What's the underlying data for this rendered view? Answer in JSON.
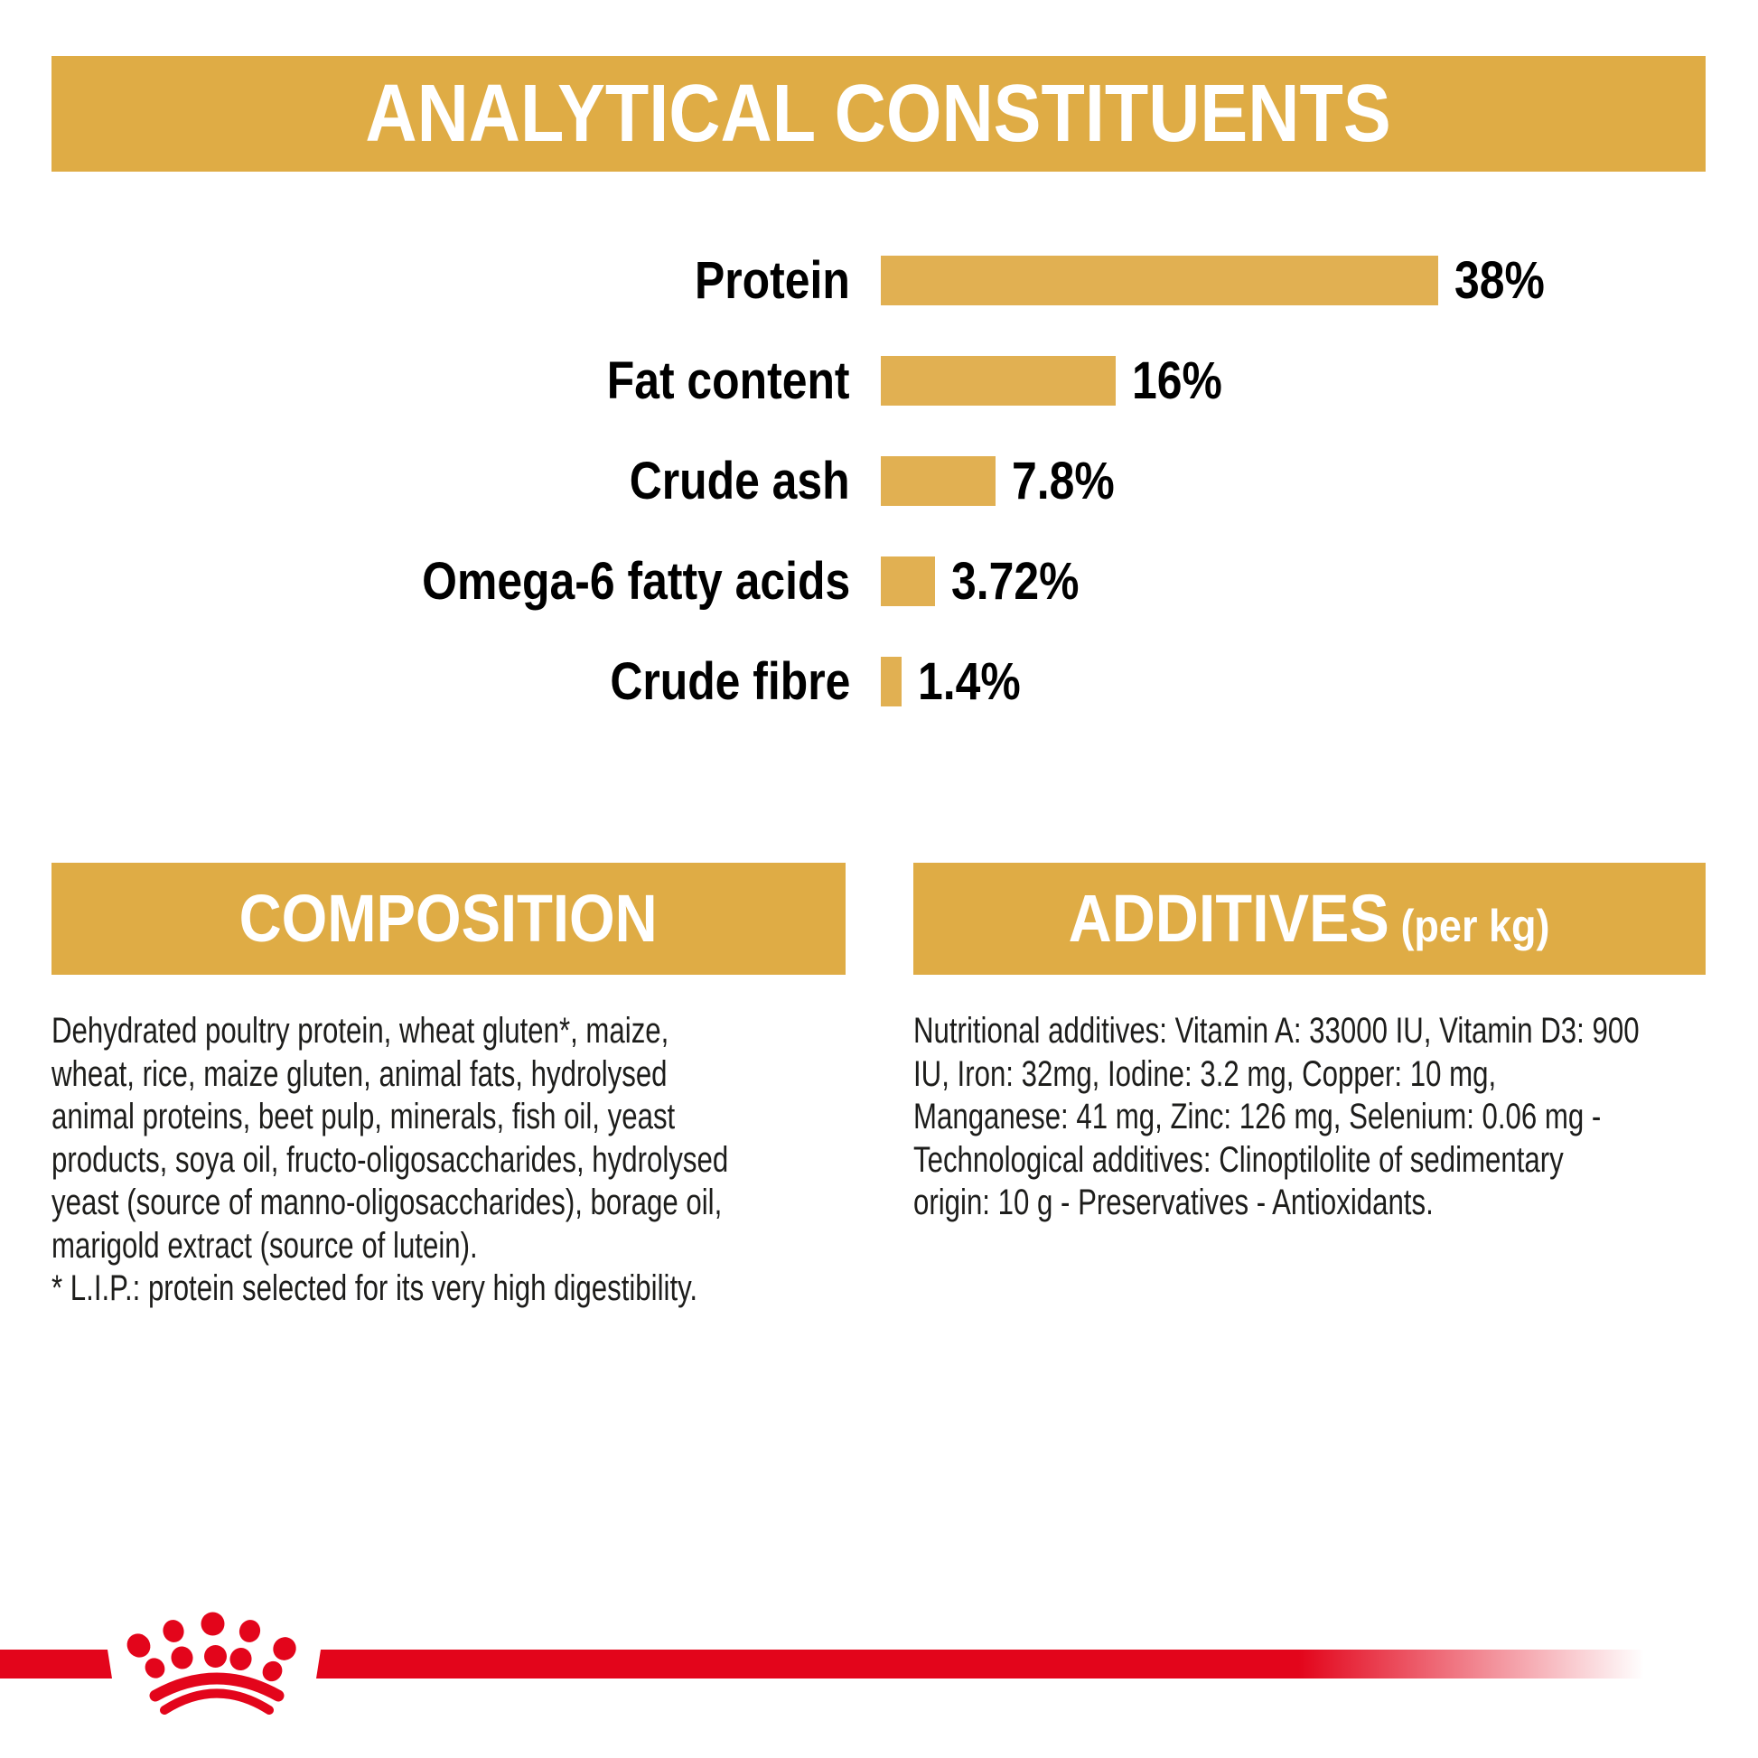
{
  "colors": {
    "gold": "#DFAC45",
    "bar_gold": "#E1B052",
    "red": "#E3051B",
    "text": "#1D1D1B",
    "banner_text": "#FFFFFF"
  },
  "header": {
    "title": "ANALYTICAL CONSTITUENTS"
  },
  "chart_data": {
    "type": "bar",
    "orientation": "horizontal",
    "title": "ANALYTICAL CONSTITUENTS",
    "categories": [
      "Protein",
      "Fat content",
      "Crude ash",
      "Omega-6 fatty acids",
      "Crude fibre"
    ],
    "values": [
      38,
      16,
      7.8,
      3.72,
      1.4
    ],
    "value_labels": [
      "38%",
      "16%",
      "7.8%",
      "3.72%",
      "1.4%"
    ],
    "unit": "%",
    "xlim": [
      0,
      38
    ],
    "grid": false,
    "legend": false,
    "bar_color": "#E1B052"
  },
  "composition": {
    "heading": "COMPOSITION",
    "lines": [
      "Dehydrated poultry protein, wheat gluten*, maize,",
      "wheat, rice, maize gluten, animal fats, hydrolysed",
      "animal proteins, beet pulp, minerals, fish oil, yeast",
      "products, soya oil, fructo-oligosaccharides, hydrolysed",
      "yeast (source of manno-oligosaccharides), borage oil,",
      "marigold extract (source of lutein).",
      "* L.I.P.: protein selected for its very high digestibility."
    ]
  },
  "additives": {
    "heading": "ADDITIVES",
    "heading_suffix": "(per kg)",
    "lines": [
      "Nutritional additives: Vitamin A: 33000 IU, Vitamin D3: 900",
      "IU, Iron: 32mg, Iodine: 3.2 mg, Copper: 10 mg,",
      "Manganese: 41 mg, Zinc: 126 mg, Selenium: 0.06 mg -",
      "Technological additives: Clinoptilolite of sedimentary",
      "origin: 10 g - Preservatives - Antioxidants."
    ]
  },
  "footer": {
    "brand_icon": "royal-canin-crown"
  }
}
